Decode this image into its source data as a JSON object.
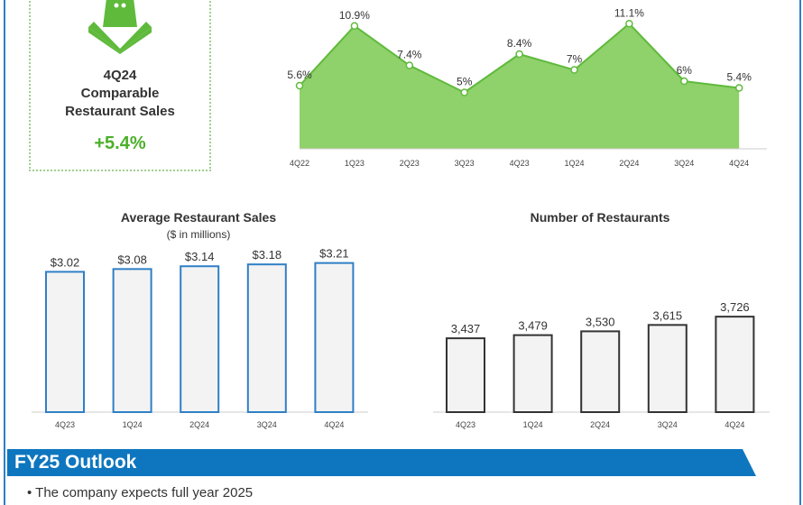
{
  "kpi": {
    "icon": "shopping-bag-icon",
    "period": "4Q24",
    "label_line1": "Comparable",
    "label_line2": "Restaurant Sales",
    "value": "+5.4%"
  },
  "colors": {
    "green": "#5fba3c",
    "area": "#8fd16a",
    "blue": "#2f7fc6",
    "banner": "#0e76bf"
  },
  "chart_data": [
    {
      "type": "area",
      "title": "Comparable Restaurant Sales",
      "categories": [
        "4Q22",
        "1Q23",
        "2Q23",
        "3Q23",
        "4Q23",
        "1Q24",
        "2Q24",
        "3Q24",
        "4Q24"
      ],
      "values": [
        5.6,
        10.9,
        7.4,
        5,
        8.4,
        7,
        11.1,
        6,
        5.4
      ],
      "labels": [
        "5.6%",
        "10.9%",
        "7.4%",
        "5%",
        "8.4%",
        "7%",
        "11.1%",
        "6%",
        "5.4%"
      ],
      "ylim": [
        0,
        13
      ]
    },
    {
      "type": "bar",
      "title": "Average Restaurant Sales",
      "subtitle": "($ in millions)",
      "categories": [
        "4Q23",
        "1Q24",
        "2Q24",
        "3Q24",
        "4Q24"
      ],
      "values": [
        3.02,
        3.08,
        3.14,
        3.18,
        3.21
      ],
      "labels": [
        "$3.02",
        "$3.08",
        "$3.14",
        "$3.18",
        "$3.21"
      ],
      "ylim": [
        0,
        3.3
      ]
    },
    {
      "type": "bar",
      "title": "Number of Restaurants",
      "categories": [
        "4Q23",
        "1Q24",
        "2Q24",
        "3Q24",
        "4Q24"
      ],
      "values": [
        3437,
        3479,
        3530,
        3615,
        3726
      ],
      "labels": [
        "3,437",
        "3,479",
        "3,530",
        "3,615",
        "3,726"
      ],
      "ylim": [
        2450,
        3800
      ]
    }
  ],
  "outlook": {
    "title": "FY25 Outlook",
    "bullet": "The company expects full year 2025"
  }
}
